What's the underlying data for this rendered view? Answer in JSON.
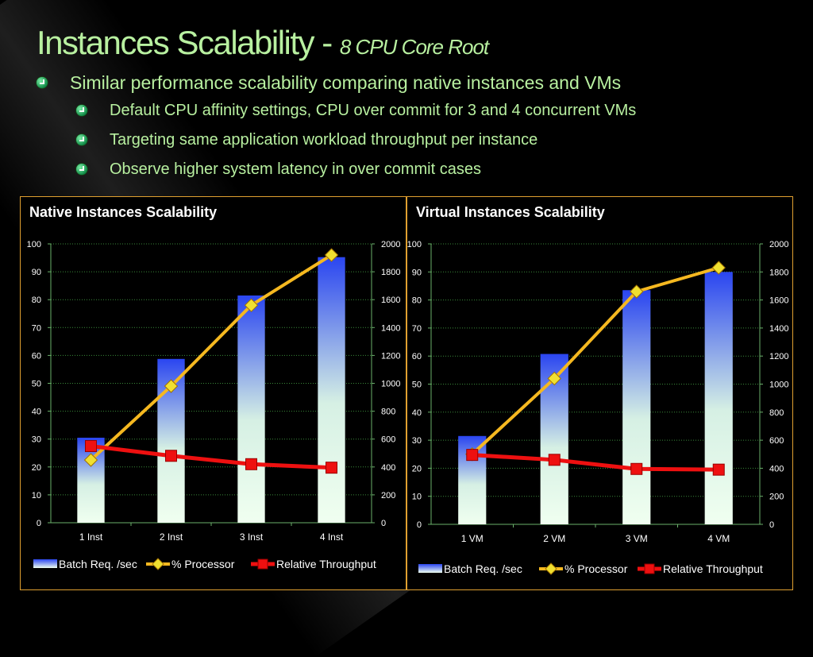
{
  "slide": {
    "title": "Instances Scalability - ",
    "title_sub": "8 CPU Core Root",
    "bullets": [
      {
        "level": 1,
        "text": "Similar performance scalability comparing native instances and VMs"
      },
      {
        "level": 2,
        "text": "Default CPU affinity settings, CPU over commit for 3 and 4 concurrent VMs"
      },
      {
        "level": 2,
        "text": "Targeting same application workload throughput per instance"
      },
      {
        "level": 2,
        "text": "Observe higher system latency in over commit cases"
      }
    ]
  },
  "colors": {
    "bar_top": "#2a45f0",
    "bar_bottom": "#f0fff0",
    "processor_line": "#f5b820",
    "processor_marker": "#f0e030",
    "throughput_line": "#ee1010",
    "panel_border": "#e0a030",
    "title_green": "#b8f0a0"
  },
  "chart_data": [
    {
      "type": "bar",
      "title": "Native Instances Scalability",
      "categories": [
        "1 Inst",
        "2 Inst",
        "3 Inst",
        "4 Inst"
      ],
      "y_left": {
        "min": 0,
        "max": 100,
        "ticks": [
          "0",
          "10",
          "20",
          "30",
          "40",
          "50",
          "60",
          "70",
          "80",
          "90",
          "100"
        ]
      },
      "y_right": {
        "min": 0,
        "max": 2000,
        "ticks": [
          "0",
          "200",
          "400",
          "600",
          "800",
          "1000",
          "1200",
          "1400",
          "1600",
          "1800",
          "2000"
        ]
      },
      "grid": true,
      "legend_position": "bottom",
      "series": [
        {
          "name": "Batch Req. /sec",
          "kind": "bar",
          "axis": "right",
          "values": [
            610,
            1175,
            1630,
            1905
          ]
        },
        {
          "name": "% Processor",
          "kind": "line",
          "axis": "left",
          "values": [
            22.5,
            49,
            78,
            96
          ]
        },
        {
          "name": "Relative Throughput",
          "kind": "line",
          "axis": "right",
          "values": [
            550,
            480,
            420,
            395
          ]
        }
      ]
    },
    {
      "type": "bar",
      "title": "Virtual Instances Scalability",
      "categories": [
        "1 VM",
        "2 VM",
        "3 VM",
        "4 VM"
      ],
      "y_left": {
        "min": 0,
        "max": 100,
        "ticks": [
          "0",
          "10",
          "20",
          "30",
          "40",
          "50",
          "60",
          "70",
          "80",
          "90",
          "100"
        ]
      },
      "y_right": {
        "min": 0,
        "max": 2000,
        "ticks": [
          "0",
          "200",
          "400",
          "600",
          "800",
          "1000",
          "1200",
          "1400",
          "1600",
          "1800",
          "2000"
        ]
      },
      "grid": true,
      "legend_position": "bottom",
      "series": [
        {
          "name": "Batch Req. /sec",
          "kind": "bar",
          "axis": "right",
          "values": [
            630,
            1215,
            1670,
            1800
          ]
        },
        {
          "name": "% Processor",
          "kind": "line",
          "axis": "left",
          "values": [
            25,
            52,
            83,
            91.5
          ]
        },
        {
          "name": "Relative Throughput",
          "kind": "line",
          "axis": "right",
          "values": [
            495,
            460,
            395,
            390
          ]
        }
      ]
    }
  ]
}
